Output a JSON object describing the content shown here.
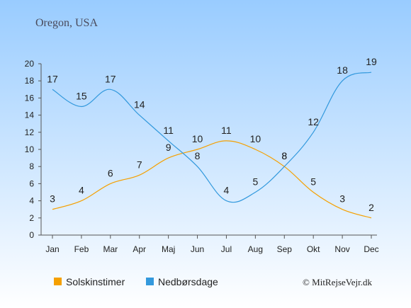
{
  "chart_data": {
    "type": "line",
    "title": "Oregon, USA",
    "categories": [
      "Jan",
      "Feb",
      "Mar",
      "Apr",
      "Maj",
      "Jun",
      "Jul",
      "Aug",
      "Sep",
      "Okt",
      "Nov",
      "Dec"
    ],
    "series": [
      {
        "name": "Solskinstimer",
        "color": "#f5a000",
        "values": [
          3,
          4,
          6,
          7,
          9,
          10,
          11,
          10,
          8,
          5,
          3,
          2
        ]
      },
      {
        "name": "Nedbørsdage",
        "color": "#3399dd",
        "values": [
          17,
          15,
          17,
          14,
          11,
          8,
          4,
          5,
          8,
          12,
          18,
          19
        ]
      }
    ],
    "ylim": [
      0,
      20
    ],
    "yticks": [
      0,
      2,
      4,
      6,
      8,
      10,
      12,
      14,
      16,
      18,
      20
    ],
    "grid": false,
    "legend_position": "bottom-left",
    "copyright": "© MitRejseVejr.dk",
    "background_top_color": "#99ccff",
    "background_bottom_color": "#ffffff"
  }
}
